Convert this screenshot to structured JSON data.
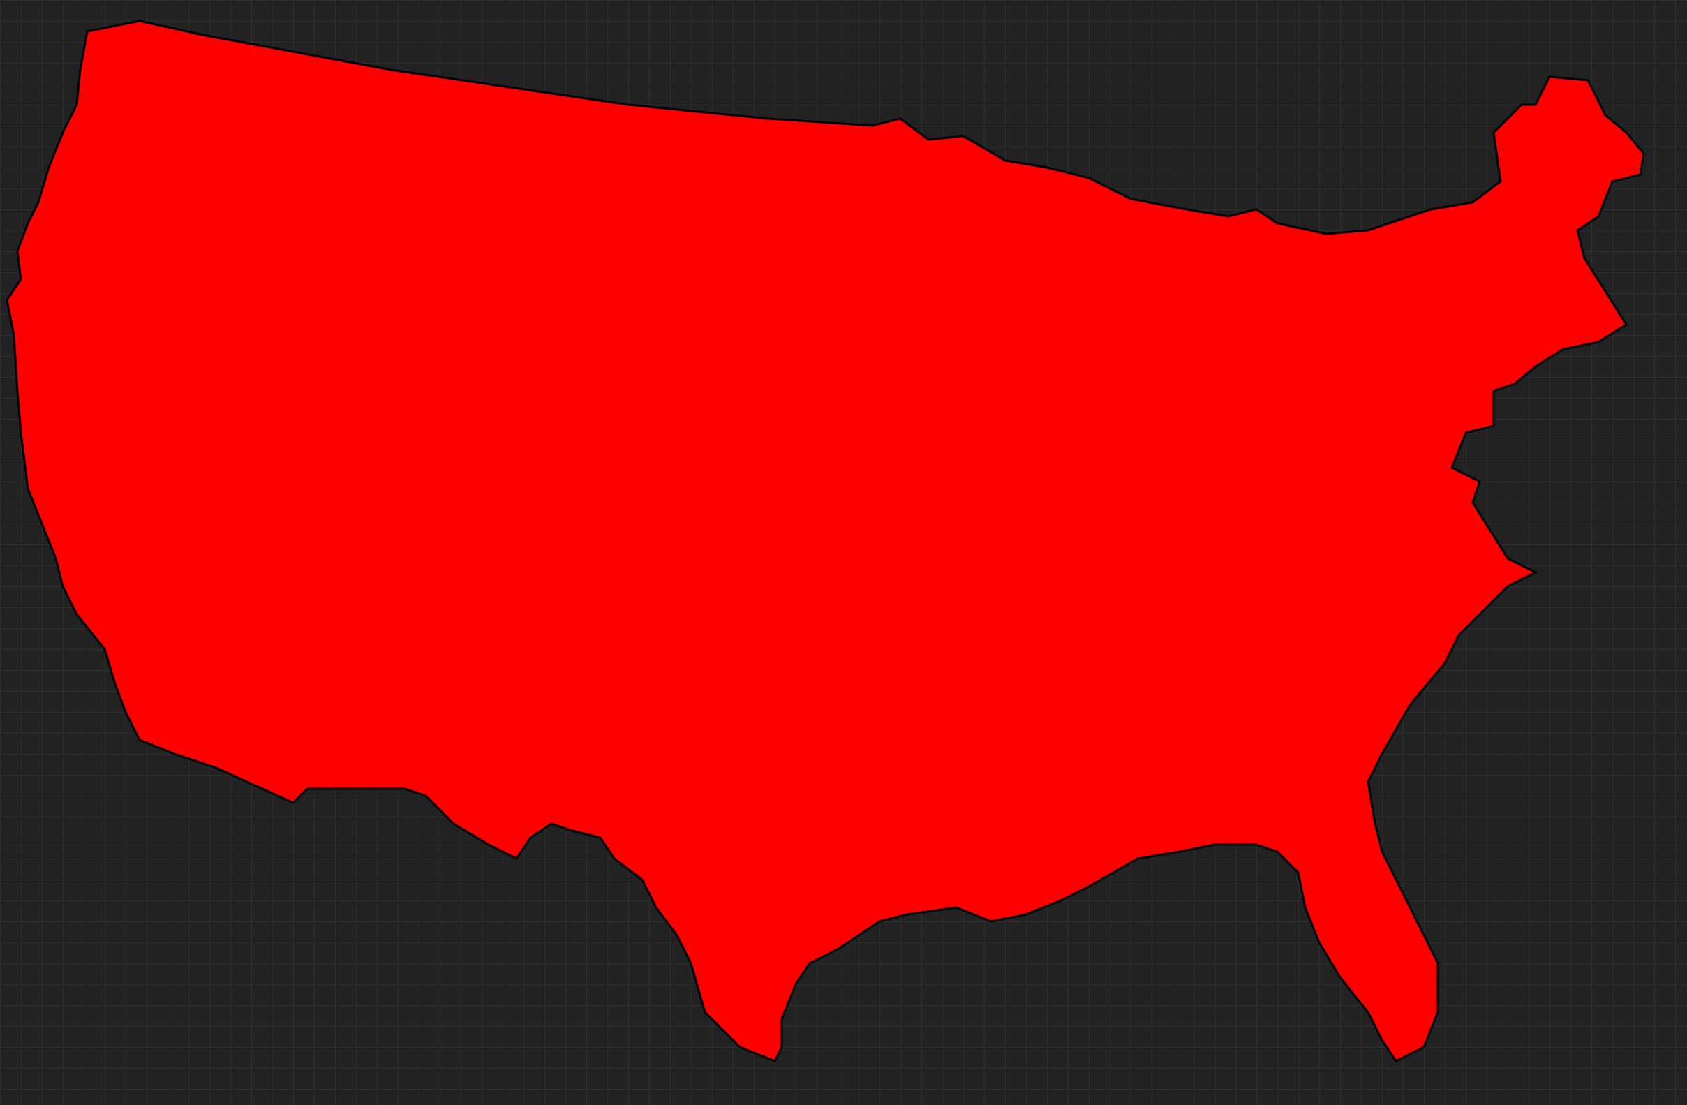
{
  "map": {
    "type": "choropleth",
    "region": "contiguous-united-states",
    "unit": "county",
    "colors": {
      "background": "#222222",
      "grid": "#2e2e2e",
      "red": "#ff0000",
      "blue": "#14a8f0",
      "gray": "#888888",
      "border": "#000000"
    },
    "categories": [
      "red",
      "blue",
      "gray"
    ]
  }
}
